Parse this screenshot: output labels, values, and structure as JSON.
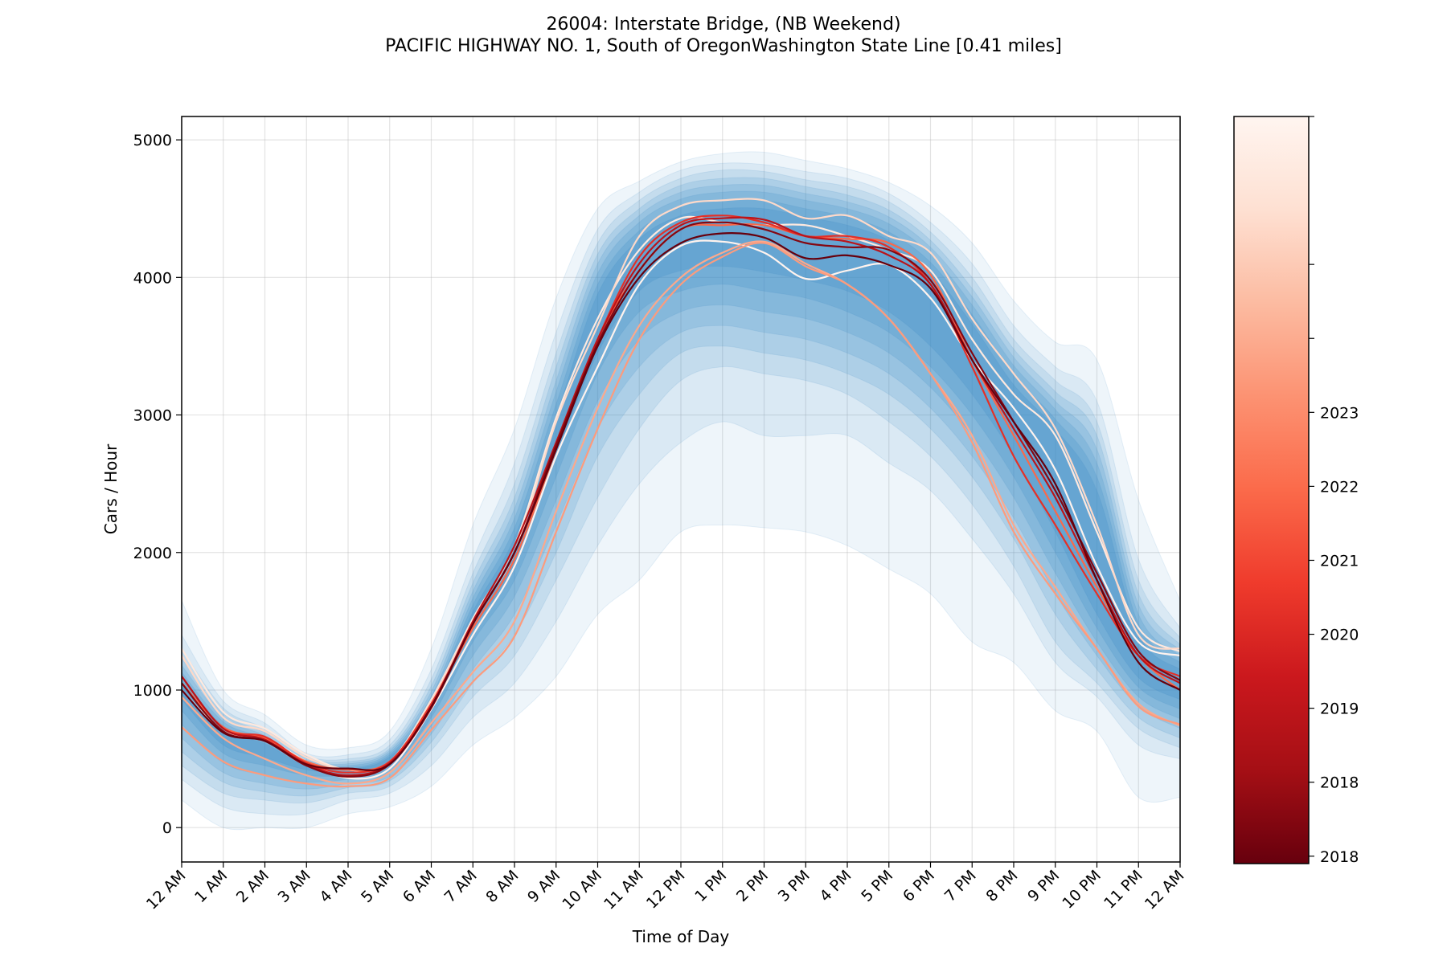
{
  "chart_data": {
    "type": "line",
    "title": "26004: Interstate Bridge, (NB Weekend)",
    "subtitle": "PACIFIC HIGHWAY NO. 1, South of OregonWashington State Line [0.41 miles]",
    "xlabel": "Time of Day",
    "ylabel": "Cars / Hour",
    "xlim": [
      0,
      24
    ],
    "ylim": [
      -250,
      5170
    ],
    "yticks": [
      0,
      1000,
      2000,
      3000,
      4000,
      5000
    ],
    "xtick_labels": [
      "12 AM",
      "1 AM",
      "2 AM",
      "3 AM",
      "4 AM",
      "5 AM",
      "6 AM",
      "7 AM",
      "8 AM",
      "9 AM",
      "10 AM",
      "11 AM",
      "12 PM",
      "1 PM",
      "2 PM",
      "3 PM",
      "4 PM",
      "5 PM",
      "6 PM",
      "7 PM",
      "8 PM",
      "9 PM",
      "10 PM",
      "11 PM",
      "12 AM"
    ],
    "grid": true,
    "hours": [
      0,
      1,
      2,
      3,
      4,
      5,
      6,
      7,
      8,
      9,
      10,
      11,
      12,
      13,
      14,
      15,
      16,
      17,
      18,
      19,
      20,
      21,
      22,
      23,
      24
    ],
    "band_color": "#3f8fc8",
    "bands": [
      {
        "lower": [
          200,
          0,
          0,
          0,
          100,
          150,
          300,
          600,
          800,
          1100,
          1550,
          1800,
          2150,
          2200,
          2180,
          2150,
          2050,
          1880,
          1700,
          1350,
          1200,
          850,
          700,
          220,
          220
        ],
        "upper": [
          1650,
          1000,
          820,
          600,
          580,
          700,
          1300,
          2200,
          2900,
          3850,
          4500,
          4700,
          4840,
          4900,
          4910,
          4850,
          4790,
          4690,
          4520,
          4250,
          3830,
          3530,
          3400,
          2380,
          1650
        ]
      },
      {
        "lower": [
          350,
          150,
          100,
          100,
          200,
          250,
          450,
          800,
          1050,
          1500,
          2050,
          2500,
          2800,
          2950,
          2850,
          2850,
          2850,
          2650,
          2450,
          2100,
          1700,
          1200,
          950,
          600,
          500
        ],
        "upper": [
          1400,
          920,
          760,
          540,
          530,
          640,
          1150,
          1950,
          2650,
          3600,
          4350,
          4620,
          4780,
          4830,
          4820,
          4770,
          4720,
          4610,
          4400,
          4100,
          3650,
          3350,
          3100,
          1950,
          1450
        ]
      },
      {
        "lower": [
          450,
          250,
          200,
          180,
          250,
          300,
          560,
          950,
          1250,
          1800,
          2400,
          2900,
          3250,
          3350,
          3300,
          3250,
          3150,
          2950,
          2700,
          2350,
          1900,
          1350,
          1050,
          720,
          580
        ],
        "upper": [
          1300,
          870,
          720,
          520,
          500,
          600,
          1080,
          1850,
          2500,
          3450,
          4250,
          4560,
          4720,
          4780,
          4770,
          4710,
          4660,
          4550,
          4330,
          4000,
          3550,
          3250,
          2950,
          1800,
          1380
        ]
      },
      {
        "lower": [
          550,
          330,
          260,
          230,
          290,
          340,
          620,
          1050,
          1400,
          2000,
          2700,
          3150,
          3450,
          3500,
          3450,
          3400,
          3300,
          3150,
          2900,
          2550,
          2100,
          1550,
          1150,
          800,
          650
        ],
        "upper": [
          1230,
          830,
          690,
          505,
          480,
          575,
          1030,
          1780,
          2400,
          3350,
          4170,
          4500,
          4670,
          4720,
          4720,
          4660,
          4600,
          4490,
          4270,
          3920,
          3480,
          3170,
          2850,
          1700,
          1330
        ]
      },
      {
        "lower": [
          650,
          400,
          320,
          280,
          320,
          370,
          680,
          1150,
          1550,
          2200,
          2900,
          3350,
          3600,
          3650,
          3600,
          3550,
          3450,
          3300,
          3050,
          2700,
          2250,
          1700,
          1250,
          880,
          720
        ],
        "upper": [
          1180,
          800,
          670,
          490,
          465,
          560,
          990,
          1720,
          2320,
          3250,
          4100,
          4450,
          4620,
          4670,
          4670,
          4610,
          4550,
          4440,
          4220,
          3860,
          3420,
          3100,
          2750,
          1620,
          1290
        ]
      },
      {
        "lower": [
          750,
          470,
          380,
          330,
          350,
          400,
          740,
          1250,
          1680,
          2380,
          3100,
          3550,
          3750,
          3800,
          3750,
          3700,
          3600,
          3450,
          3200,
          2850,
          2400,
          1850,
          1350,
          950,
          790
        ],
        "upper": [
          1130,
          770,
          650,
          475,
          450,
          545,
          955,
          1670,
          2250,
          3170,
          4030,
          4400,
          4570,
          4620,
          4620,
          4560,
          4500,
          4390,
          4170,
          3800,
          3360,
          3040,
          2650,
          1550,
          1250
        ]
      },
      {
        "lower": [
          850,
          540,
          450,
          380,
          380,
          430,
          800,
          1350,
          1800,
          2550,
          3300,
          3750,
          3900,
          3950,
          3900,
          3850,
          3750,
          3600,
          3350,
          3000,
          2550,
          2000,
          1450,
          1020,
          860
        ],
        "upper": [
          1080,
          740,
          630,
          460,
          435,
          530,
          920,
          1620,
          2180,
          3080,
          3950,
          4340,
          4510,
          4560,
          4560,
          4500,
          4440,
          4330,
          4110,
          3730,
          3290,
          2970,
          2550,
          1480,
          1200
        ]
      },
      {
        "lower": [
          930,
          600,
          510,
          420,
          405,
          455,
          850,
          1440,
          1900,
          2700,
          3450,
          3900,
          4050,
          4080,
          4040,
          3980,
          3900,
          3750,
          3500,
          3150,
          2700,
          2150,
          1550,
          1090,
          930
        ],
        "upper": [
          1030,
          710,
          610,
          445,
          425,
          515,
          885,
          1570,
          2110,
          2990,
          3880,
          4280,
          4450,
          4500,
          4500,
          4440,
          4380,
          4270,
          4050,
          3660,
          3220,
          2900,
          2450,
          1410,
          1150
        ]
      }
    ],
    "colorbar": {
      "cmap": "Reds",
      "range": [
        2017.95,
        2023.0
      ],
      "tick_values": [
        2018.0,
        2018.5,
        2019.0,
        2019.5,
        2020.0,
        2020.5,
        2021.0,
        2021.5,
        2022.0,
        2023.0
      ],
      "tick_labels": [
        "2018",
        "2018",
        "2019",
        "2020",
        "2021",
        "2022",
        "2023"
      ],
      "label_values": [
        2018.0,
        2018.5,
        2019.0,
        2019.5,
        2020.0,
        2020.5,
        2021.0
      ]
    },
    "series": [
      {
        "year_value": 2018.0,
        "values": [
          1000,
          700,
          650,
          480,
          360,
          430,
          860,
          1400,
          1900,
          2700,
          3350,
          3950,
          4230,
          4260,
          4180,
          3990,
          4050,
          4090,
          3850,
          3400,
          3050,
          2600,
          1900,
          1350,
          1250
        ]
      },
      {
        "year_value": 2018.3,
        "values": [
          1300,
          840,
          720,
          530,
          420,
          480,
          930,
          1520,
          2050,
          2980,
          3700,
          4200,
          4430,
          4400,
          4380,
          4380,
          4300,
          4200,
          4050,
          3550,
          3150,
          2850,
          2150,
          1450,
          1280
        ]
      },
      {
        "year_value": 2018.7,
        "values": [
          1250,
          800,
          700,
          510,
          420,
          470,
          920,
          1500,
          2000,
          2950,
          3650,
          4300,
          4520,
          4560,
          4560,
          4430,
          4450,
          4300,
          4180,
          3700,
          3300,
          2900,
          2200,
          1400,
          1300
        ]
      },
      {
        "year_value": 2019.5,
        "values": [
          950,
          650,
          500,
          380,
          320,
          400,
          760,
          1130,
          1500,
          2300,
          3050,
          3650,
          4000,
          4180,
          4260,
          4100,
          3950,
          3700,
          3300,
          2850,
          2200,
          1750,
          1300,
          900,
          740
        ]
      },
      {
        "year_value": 2019.7,
        "values": [
          730,
          480,
          380,
          320,
          300,
          360,
          710,
          1060,
          1390,
          2150,
          2900,
          3550,
          3950,
          4150,
          4250,
          4080,
          3950,
          3700,
          3300,
          2800,
          2150,
          1700,
          1300,
          880,
          750
        ]
      },
      {
        "year_value": 2020.5,
        "values": [
          1050,
          730,
          650,
          480,
          420,
          480,
          900,
          1450,
          1950,
          2750,
          3550,
          4050,
          4350,
          4380,
          4380,
          4300,
          4280,
          4250,
          4020,
          3400,
          2850,
          2300,
          1750,
          1250,
          1000
        ]
      },
      {
        "year_value": 2021.3,
        "values": [
          1100,
          720,
          660,
          470,
          400,
          480,
          900,
          1480,
          2000,
          2780,
          3550,
          4150,
          4400,
          4450,
          4400,
          4300,
          4300,
          4220,
          3950,
          3350,
          2700,
          2200,
          1700,
          1250,
          1100
        ]
      },
      {
        "year_value": 2022.0,
        "values": [
          1100,
          720,
          640,
          460,
          380,
          470,
          880,
          1500,
          2050,
          2800,
          3550,
          4100,
          4380,
          4430,
          4420,
          4300,
          4260,
          4160,
          3950,
          3400,
          2900,
          2400,
          1800,
          1250,
          1050
        ]
      },
      {
        "year_value": 2022.7,
        "values": [
          1050,
          700,
          630,
          450,
          370,
          460,
          870,
          1480,
          2000,
          2780,
          3520,
          4050,
          4350,
          4400,
          4350,
          4250,
          4220,
          4200,
          3980,
          3450,
          2950,
          2450,
          1850,
          1280,
          1070
        ]
      },
      {
        "year_value": 2023.0,
        "values": [
          1000,
          690,
          630,
          460,
          430,
          460,
          880,
          1480,
          2000,
          2750,
          3500,
          4000,
          4250,
          4320,
          4290,
          4140,
          4160,
          4090,
          3920,
          3400,
          2950,
          2500,
          1800,
          1200,
          1000
        ]
      }
    ]
  }
}
